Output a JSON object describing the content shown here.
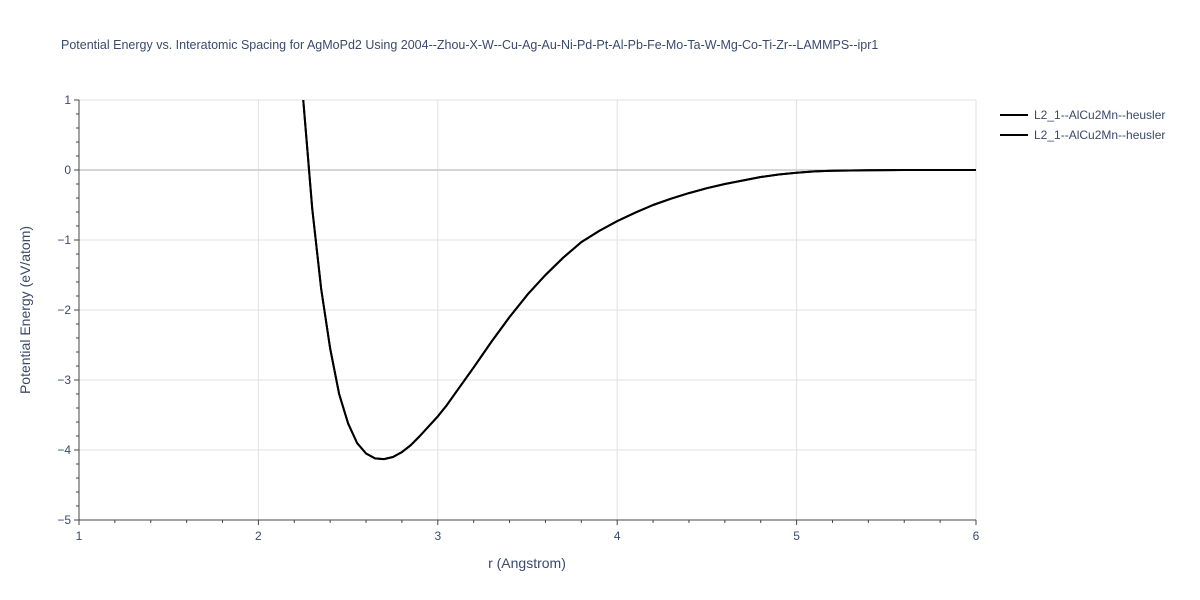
{
  "chart_data": {
    "type": "line",
    "title": "Potential Energy vs. Interatomic Spacing for AgMoPd2 Using 2004--Zhou-X-W--Cu-Ag-Au-Ni-Pd-Pt-Al-Pb-Fe-Mo-Ta-W-Mg-Co-Ti-Zr--LAMMPS--ipr1",
    "xlabel": "r (Angstrom)",
    "ylabel": "Potential Energy (eV/atom)",
    "xlim": [
      1,
      6
    ],
    "ylim": [
      -5,
      1
    ],
    "x_ticks": [
      1,
      2,
      3,
      4,
      5,
      6
    ],
    "x_tick_labels": [
      "1",
      "2",
      "3",
      "4",
      "5",
      "6"
    ],
    "y_ticks": [
      1,
      0,
      -1,
      -2,
      -3,
      -4,
      -5
    ],
    "y_tick_labels": [
      "1",
      "0",
      "−1",
      "−2",
      "−3",
      "−4",
      "−5"
    ],
    "grid": true,
    "legend_position": "top-right",
    "series": [
      {
        "name": "L2_1--AlCu2Mn--heusler",
        "color": "#000000",
        "x": [
          2.25,
          2.3,
          2.35,
          2.4,
          2.45,
          2.5,
          2.55,
          2.6,
          2.65,
          2.7,
          2.75,
          2.8,
          2.85,
          2.9,
          2.95,
          3.0,
          3.05,
          3.1,
          3.2,
          3.3,
          3.4,
          3.5,
          3.6,
          3.7,
          3.8,
          3.9,
          4.0,
          4.1,
          4.2,
          4.3,
          4.4,
          4.5,
          4.6,
          4.7,
          4.8,
          4.9,
          5.0,
          5.1,
          5.2,
          5.4,
          5.6,
          5.8,
          6.0
        ],
        "y": [
          1.0,
          -0.55,
          -1.7,
          -2.55,
          -3.2,
          -3.62,
          -3.9,
          -4.05,
          -4.12,
          -4.13,
          -4.1,
          -4.03,
          -3.93,
          -3.8,
          -3.66,
          -3.52,
          -3.36,
          -3.18,
          -2.82,
          -2.45,
          -2.1,
          -1.78,
          -1.5,
          -1.25,
          -1.03,
          -0.87,
          -0.73,
          -0.61,
          -0.5,
          -0.41,
          -0.33,
          -0.26,
          -0.2,
          -0.15,
          -0.1,
          -0.065,
          -0.04,
          -0.02,
          -0.01,
          -0.003,
          0.0,
          0.0,
          0.0
        ]
      },
      {
        "name": "L2_1--AlCu2Mn--heusler",
        "color": "#000000",
        "x": [
          2.25,
          2.3,
          2.35,
          2.4,
          2.45,
          2.5,
          2.55,
          2.6,
          2.65,
          2.7,
          2.75,
          2.8,
          2.85,
          2.9,
          2.95,
          3.0,
          3.05,
          3.1,
          3.2,
          3.3,
          3.4,
          3.5,
          3.6,
          3.7,
          3.8,
          3.9,
          4.0,
          4.1,
          4.2,
          4.3,
          4.4,
          4.5,
          4.6,
          4.7,
          4.8,
          4.9,
          5.0,
          5.1,
          5.2,
          5.4,
          5.6,
          5.8,
          6.0
        ],
        "y": [
          1.0,
          -0.55,
          -1.7,
          -2.55,
          -3.2,
          -3.62,
          -3.9,
          -4.05,
          -4.12,
          -4.13,
          -4.1,
          -4.03,
          -3.93,
          -3.8,
          -3.66,
          -3.52,
          -3.36,
          -3.18,
          -2.82,
          -2.45,
          -2.1,
          -1.78,
          -1.5,
          -1.25,
          -1.03,
          -0.87,
          -0.73,
          -0.61,
          -0.5,
          -0.41,
          -0.33,
          -0.26,
          -0.2,
          -0.15,
          -0.1,
          -0.065,
          -0.04,
          -0.02,
          -0.01,
          -0.003,
          0.0,
          0.0,
          0.0
        ]
      }
    ]
  }
}
